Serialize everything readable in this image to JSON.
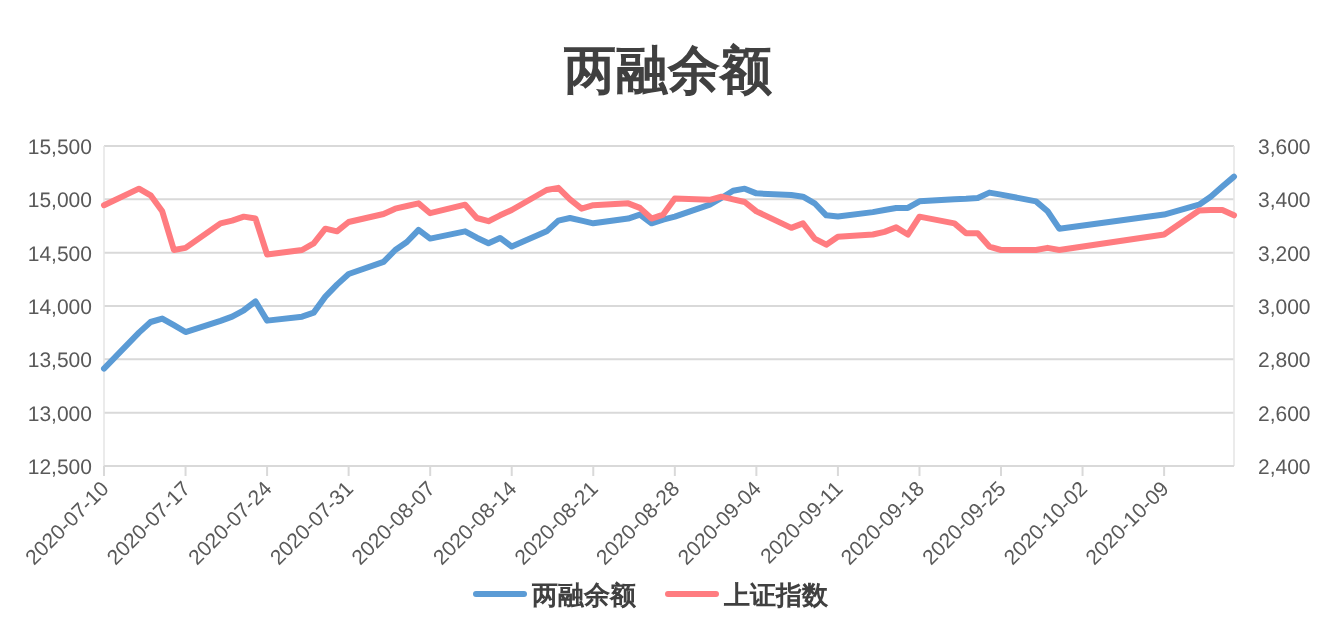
{
  "chart_data": {
    "type": "line",
    "title": "两融余额",
    "x": [
      "2020-07-10",
      "2020-07-13",
      "2020-07-14",
      "2020-07-15",
      "2020-07-16",
      "2020-07-17",
      "2020-07-20",
      "2020-07-21",
      "2020-07-22",
      "2020-07-23",
      "2020-07-24",
      "2020-07-27",
      "2020-07-28",
      "2020-07-29",
      "2020-07-30",
      "2020-07-31",
      "2020-08-03",
      "2020-08-04",
      "2020-08-05",
      "2020-08-06",
      "2020-08-07",
      "2020-08-10",
      "2020-08-11",
      "2020-08-12",
      "2020-08-13",
      "2020-08-14",
      "2020-08-17",
      "2020-08-18",
      "2020-08-19",
      "2020-08-20",
      "2020-08-21",
      "2020-08-24",
      "2020-08-25",
      "2020-08-26",
      "2020-08-27",
      "2020-08-28",
      "2020-08-31",
      "2020-09-01",
      "2020-09-02",
      "2020-09-03",
      "2020-09-04",
      "2020-09-07",
      "2020-09-08",
      "2020-09-09",
      "2020-09-10",
      "2020-09-11",
      "2020-09-14",
      "2020-09-15",
      "2020-09-16",
      "2020-09-17",
      "2020-09-18",
      "2020-09-21",
      "2020-09-22",
      "2020-09-23",
      "2020-09-24",
      "2020-09-25",
      "2020-09-28",
      "2020-09-29",
      "2020-09-30",
      "2020-10-09",
      "2020-10-12",
      "2020-10-13",
      "2020-10-14",
      "2020-10-15"
    ],
    "series": [
      {
        "name": "两融余额",
        "color": "#5b9bd5",
        "values": [
          13413,
          13750,
          13850,
          13882,
          13820,
          13756,
          13860,
          13900,
          13960,
          14043,
          13863,
          13900,
          13938,
          14088,
          14200,
          14300,
          14413,
          14525,
          14600,
          14713,
          14632,
          14700,
          14640,
          14588,
          14638,
          14557,
          14700,
          14800,
          14825,
          14800,
          14775,
          14820,
          14857,
          14775,
          14810,
          14838,
          14950,
          15013,
          15080,
          15100,
          15056,
          15040,
          15025,
          14963,
          14850,
          14840,
          14880,
          14900,
          14919,
          14919,
          14981,
          15000,
          15005,
          15013,
          15063,
          15044,
          14981,
          14888,
          14725,
          14857,
          14950,
          15025,
          15120,
          15213
        ]
      },
      {
        "name": "上证指数",
        "color": "#ff7c80",
        "axis": "y2",
        "values": [
          3378,
          3440,
          3415,
          3355,
          3210,
          3218,
          3310,
          3320,
          3335,
          3328,
          3193,
          3210,
          3235,
          3290,
          3280,
          3315,
          3345,
          3365,
          3375,
          3385,
          3348,
          3380,
          3330,
          3318,
          3340,
          3360,
          3435,
          3443,
          3400,
          3365,
          3378,
          3385,
          3368,
          3328,
          3343,
          3403,
          3398,
          3410,
          3400,
          3390,
          3355,
          3293,
          3310,
          3253,
          3230,
          3260,
          3268,
          3278,
          3295,
          3268,
          3335,
          3310,
          3273,
          3273,
          3223,
          3210,
          3210,
          3218,
          3210,
          3268,
          3358,
          3360,
          3360,
          3340
        ]
      }
    ],
    "xlim": [
      "2020-07-10",
      "2020-10-15"
    ],
    "xticks": [
      "2020-07-10",
      "2020-07-17",
      "2020-07-24",
      "2020-07-31",
      "2020-08-07",
      "2020-08-14",
      "2020-08-21",
      "2020-08-28",
      "2020-09-04",
      "2020-09-11",
      "2020-09-18",
      "2020-09-25",
      "2020-10-02",
      "2020-10-09"
    ],
    "ylim": [
      12500,
      15500
    ],
    "yticks": [
      {
        "value": 12500,
        "label": "12,500"
      },
      {
        "value": 13000,
        "label": "13,000"
      },
      {
        "value": 13500,
        "label": "13,500"
      },
      {
        "value": 14000,
        "label": "14,000"
      },
      {
        "value": 14500,
        "label": "14,500"
      },
      {
        "value": 15000,
        "label": "15,000"
      },
      {
        "value": 15500,
        "label": "15,500"
      }
    ],
    "y2lim": [
      2400,
      3600
    ],
    "y2ticks": [
      {
        "value": 2400,
        "label": "2,400"
      },
      {
        "value": 2600,
        "label": "2,600"
      },
      {
        "value": 2800,
        "label": "2,800"
      },
      {
        "value": 3000,
        "label": "3,000"
      },
      {
        "value": 3200,
        "label": "3,200"
      },
      {
        "value": 3400,
        "label": "3,400"
      },
      {
        "value": 3600,
        "label": "3,600"
      }
    ],
    "grid": "y",
    "legend": "bottom",
    "line_style": "solid"
  }
}
